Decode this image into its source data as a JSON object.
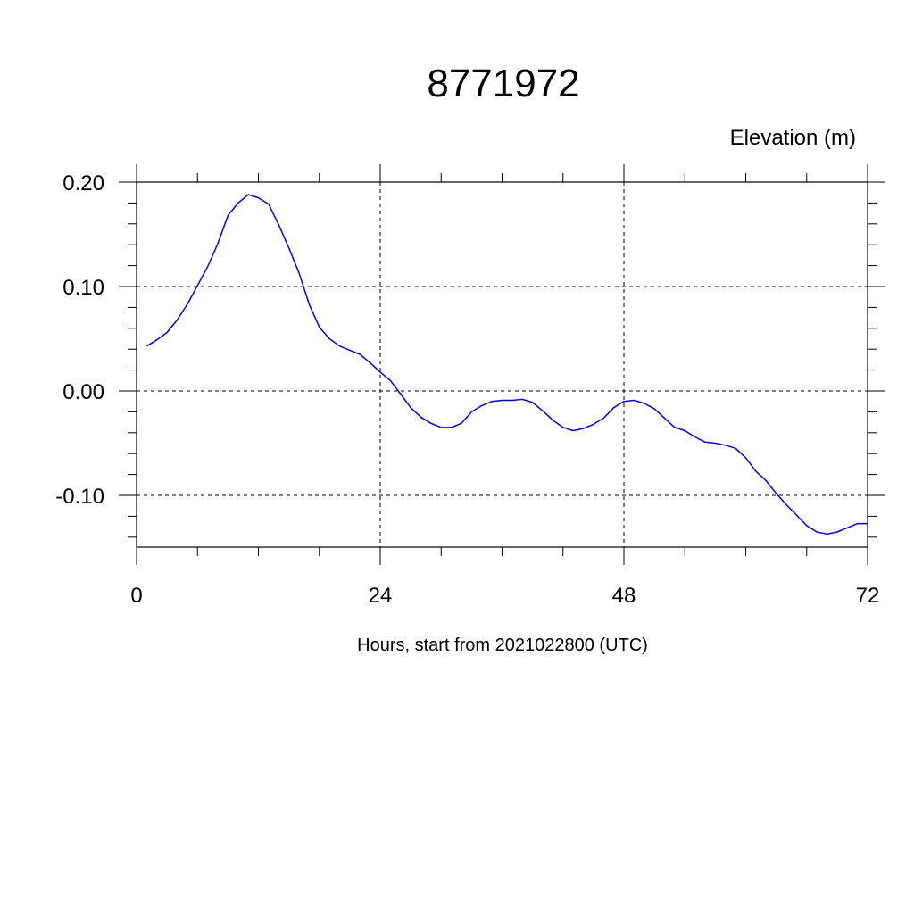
{
  "chart_data": {
    "type": "line",
    "title": "8771972",
    "units_label": "Elevation (m)",
    "xlabel": "Hours, start from 2021022800 (UTC)",
    "xlim": [
      0,
      72
    ],
    "ylim": [
      -0.15,
      0.2
    ],
    "x_ticks": [
      0,
      24,
      48,
      72
    ],
    "x_tick_labels": [
      "0",
      "24",
      "48",
      "72"
    ],
    "y_ticks": [
      0.2,
      0.1,
      0.0,
      -0.1
    ],
    "y_tick_labels": [
      "0.20",
      "0.10",
      "0.00",
      "-0.10"
    ],
    "grid": "dashed",
    "series": [
      {
        "color": "#0000ff",
        "x": [
          1,
          2,
          3,
          4,
          5,
          6,
          7,
          8,
          9,
          10,
          11,
          12,
          13,
          14,
          15,
          16,
          17,
          18,
          19,
          20,
          21,
          22,
          23,
          24,
          25,
          26,
          27,
          28,
          29,
          30,
          31,
          32,
          33,
          34,
          35,
          36,
          37,
          38,
          39,
          40,
          41,
          42,
          43,
          44,
          45,
          46,
          47,
          48,
          49,
          50,
          51,
          52,
          53,
          54,
          55,
          56,
          57,
          58,
          59,
          60,
          61,
          62,
          63,
          64,
          65,
          66,
          67,
          68,
          69,
          70,
          71,
          72
        ],
        "y": [
          0.043,
          0.049,
          0.056,
          0.068,
          0.083,
          0.101,
          0.119,
          0.141,
          0.168,
          0.18,
          0.188,
          0.185,
          0.179,
          0.159,
          0.137,
          0.113,
          0.083,
          0.061,
          0.05,
          0.043,
          0.039,
          0.035,
          0.027,
          0.018,
          0.01,
          -0.003,
          -0.016,
          -0.025,
          -0.031,
          -0.035,
          -0.035,
          -0.031,
          -0.02,
          -0.014,
          -0.01,
          -0.009,
          -0.009,
          -0.008,
          -0.011,
          -0.019,
          -0.028,
          -0.035,
          -0.038,
          -0.036,
          -0.032,
          -0.026,
          -0.016,
          -0.01,
          -0.009,
          -0.012,
          -0.017,
          -0.026,
          -0.035,
          -0.038,
          -0.044,
          -0.049,
          -0.05,
          -0.052,
          -0.055,
          -0.064,
          -0.077,
          -0.086,
          -0.098,
          -0.109,
          -0.119,
          -0.129,
          -0.135,
          -0.137,
          -0.135,
          -0.131,
          -0.127,
          -0.127
        ]
      }
    ]
  }
}
